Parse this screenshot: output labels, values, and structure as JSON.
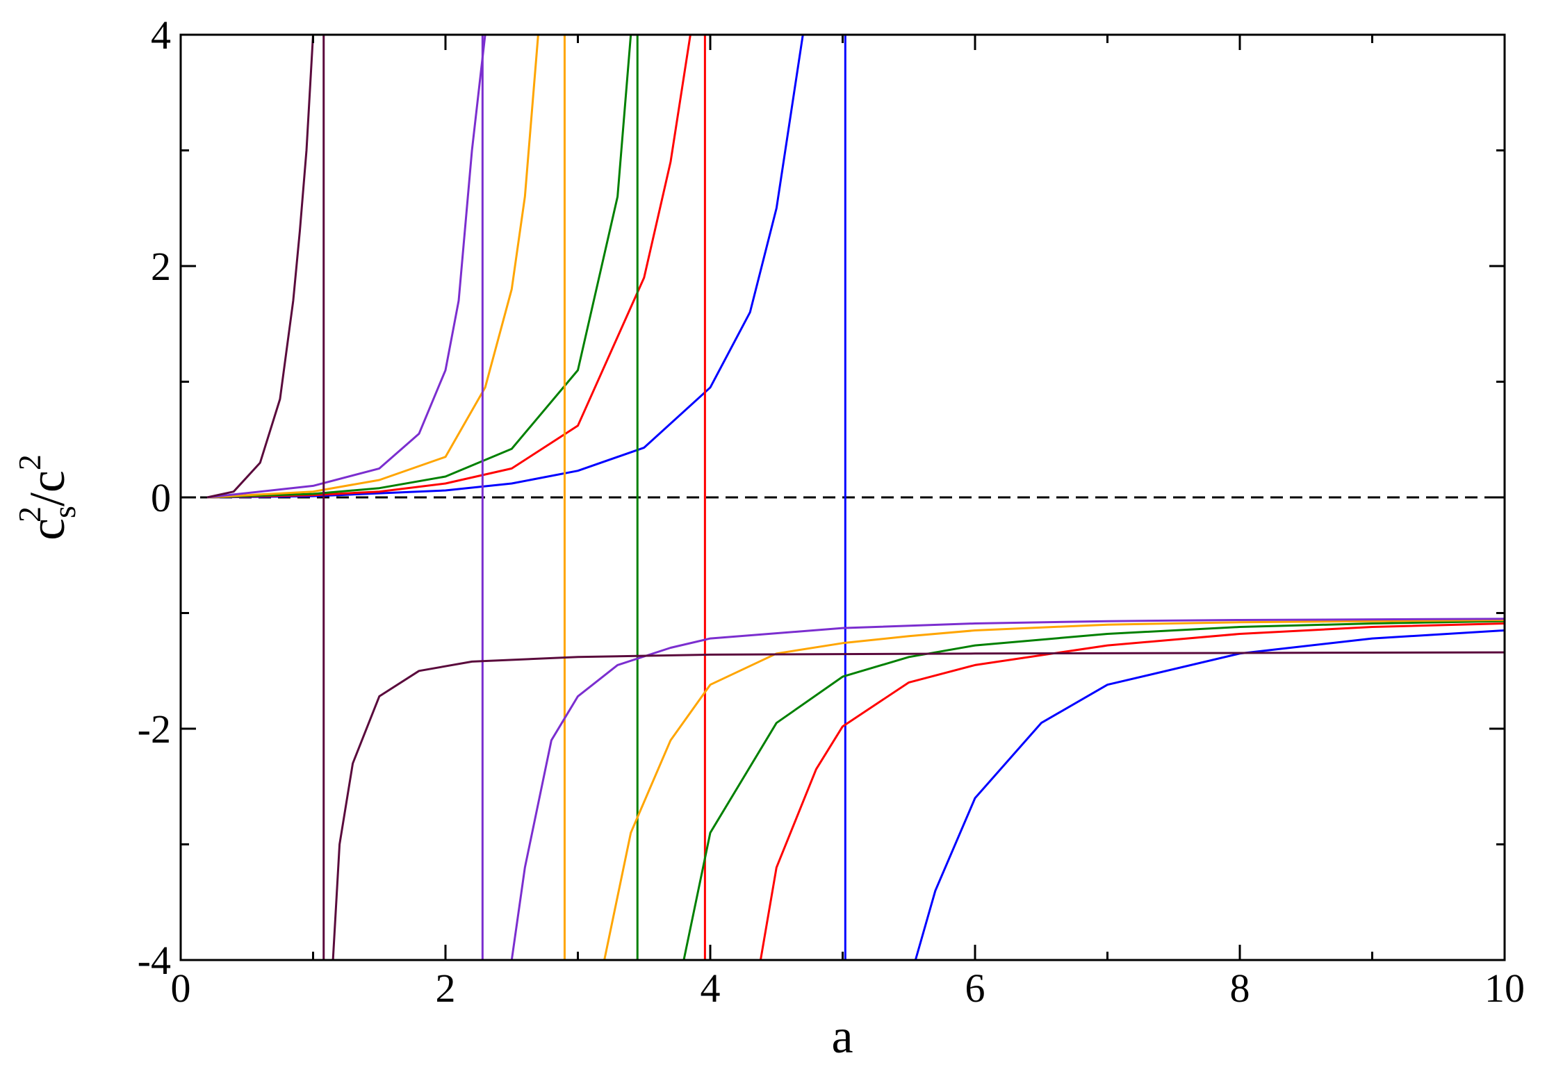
{
  "chart_data": {
    "type": "line",
    "title": "",
    "xlabel": "a",
    "ylabel": {
      "base": "c",
      "sub": "s",
      "sup1": "2",
      "sep": "/c",
      "sup2": "2"
    },
    "xlim": [
      0,
      10
    ],
    "ylim": [
      -4,
      4
    ],
    "x_ticks": [
      0,
      2,
      4,
      6,
      8,
      10
    ],
    "x_tick_labels": [
      "0",
      "2",
      "4",
      "6",
      "8",
      "10"
    ],
    "y_ticks": [
      -4,
      -2,
      0,
      2,
      4
    ],
    "y_tick_labels": [
      "-4",
      "-2",
      "0",
      "2",
      "4"
    ],
    "x_minor_step": 1,
    "y_minor_step": 1,
    "grid": false,
    "legend": "none",
    "reference_line": {
      "y": 0,
      "style": "dashed",
      "color": "#000000"
    },
    "series": [
      {
        "color": "#0000ff",
        "pole": 5.02,
        "positive_branch": [
          [
            0.2,
            0.0
          ],
          [
            1.0,
            0.01
          ],
          [
            2.0,
            0.06
          ],
          [
            2.5,
            0.12
          ],
          [
            3.0,
            0.23
          ],
          [
            3.5,
            0.43
          ],
          [
            4.0,
            0.95
          ],
          [
            4.3,
            1.6
          ],
          [
            4.5,
            2.5
          ],
          [
            4.7,
            4.0
          ]
        ],
        "negative_branch": [
          [
            5.55,
            -4.0
          ],
          [
            5.7,
            -3.4
          ],
          [
            6.0,
            -2.6
          ],
          [
            6.5,
            -1.95
          ],
          [
            7.0,
            -1.62
          ],
          [
            8.0,
            -1.35
          ],
          [
            9.0,
            -1.22
          ],
          [
            10.0,
            -1.15
          ]
        ]
      },
      {
        "color": "#ff0000",
        "pole": 3.96,
        "positive_branch": [
          [
            0.2,
            0.0
          ],
          [
            1.0,
            0.02
          ],
          [
            1.5,
            0.05
          ],
          [
            2.0,
            0.12
          ],
          [
            2.5,
            0.25
          ],
          [
            3.0,
            0.62
          ],
          [
            3.5,
            1.9
          ],
          [
            3.7,
            2.9
          ],
          [
            3.85,
            4.0
          ]
        ],
        "negative_branch": [
          [
            4.38,
            -4.0
          ],
          [
            4.5,
            -3.2
          ],
          [
            4.8,
            -2.35
          ],
          [
            5.0,
            -1.98
          ],
          [
            5.5,
            -1.6
          ],
          [
            6.0,
            -1.45
          ],
          [
            7.0,
            -1.28
          ],
          [
            8.0,
            -1.18
          ],
          [
            9.0,
            -1.12
          ],
          [
            10.0,
            -1.09
          ]
        ]
      },
      {
        "color": "#008000",
        "pole": 3.45,
        "positive_branch": [
          [
            0.2,
            0.0
          ],
          [
            1.0,
            0.03
          ],
          [
            1.5,
            0.08
          ],
          [
            2.0,
            0.18
          ],
          [
            2.5,
            0.42
          ],
          [
            3.0,
            1.1
          ],
          [
            3.3,
            2.6
          ],
          [
            3.4,
            4.0
          ]
        ],
        "negative_branch": [
          [
            3.8,
            -4.0
          ],
          [
            4.0,
            -2.9
          ],
          [
            4.5,
            -1.95
          ],
          [
            5.0,
            -1.55
          ],
          [
            5.5,
            -1.38
          ],
          [
            6.0,
            -1.28
          ],
          [
            7.0,
            -1.18
          ],
          [
            8.0,
            -1.12
          ],
          [
            9.0,
            -1.09
          ],
          [
            10.0,
            -1.07
          ]
        ]
      },
      {
        "color": "#ffa500",
        "pole": 2.9,
        "positive_branch": [
          [
            0.2,
            0.0
          ],
          [
            1.0,
            0.05
          ],
          [
            1.5,
            0.15
          ],
          [
            2.0,
            0.35
          ],
          [
            2.3,
            0.95
          ],
          [
            2.5,
            1.8
          ],
          [
            2.6,
            2.6
          ],
          [
            2.7,
            4.0
          ]
        ],
        "negative_branch": [
          [
            3.2,
            -4.0
          ],
          [
            3.4,
            -2.9
          ],
          [
            3.7,
            -2.1
          ],
          [
            4.0,
            -1.62
          ],
          [
            4.5,
            -1.35
          ],
          [
            5.0,
            -1.26
          ],
          [
            5.5,
            -1.2
          ],
          [
            6.0,
            -1.15
          ],
          [
            7.0,
            -1.1
          ],
          [
            8.0,
            -1.08
          ],
          [
            9.0,
            -1.07
          ],
          [
            10.0,
            -1.06
          ]
        ]
      },
      {
        "color": "#7b2ecf",
        "pole": 2.28,
        "positive_branch": [
          [
            0.2,
            0.0
          ],
          [
            1.0,
            0.1
          ],
          [
            1.5,
            0.25
          ],
          [
            1.8,
            0.55
          ],
          [
            2.0,
            1.1
          ],
          [
            2.1,
            1.7
          ],
          [
            2.2,
            3.0
          ],
          [
            2.3,
            4.0
          ]
        ],
        "negative_branch": [
          [
            2.5,
            -4.0
          ],
          [
            2.6,
            -3.2
          ],
          [
            2.8,
            -2.1
          ],
          [
            3.0,
            -1.72
          ],
          [
            3.3,
            -1.45
          ],
          [
            3.7,
            -1.3
          ],
          [
            4.0,
            -1.22
          ],
          [
            5.0,
            -1.13
          ],
          [
            6.0,
            -1.09
          ],
          [
            7.0,
            -1.07
          ],
          [
            8.0,
            -1.06
          ],
          [
            10.0,
            -1.05
          ]
        ]
      },
      {
        "color": "#5a0a3c",
        "pole": 1.08,
        "positive_branch": [
          [
            0.2,
            0.0
          ],
          [
            0.4,
            0.05
          ],
          [
            0.6,
            0.3
          ],
          [
            0.75,
            0.85
          ],
          [
            0.85,
            1.7
          ],
          [
            0.9,
            2.3
          ],
          [
            0.95,
            3.0
          ],
          [
            1.0,
            4.0
          ]
        ],
        "negative_branch": [
          [
            1.15,
            -4.0
          ],
          [
            1.2,
            -3.0
          ],
          [
            1.3,
            -2.3
          ],
          [
            1.5,
            -1.72
          ],
          [
            1.8,
            -1.5
          ],
          [
            2.2,
            -1.42
          ],
          [
            3.0,
            -1.38
          ],
          [
            4.0,
            -1.36
          ],
          [
            6.0,
            -1.35
          ],
          [
            10.0,
            -1.34
          ]
        ]
      }
    ]
  }
}
